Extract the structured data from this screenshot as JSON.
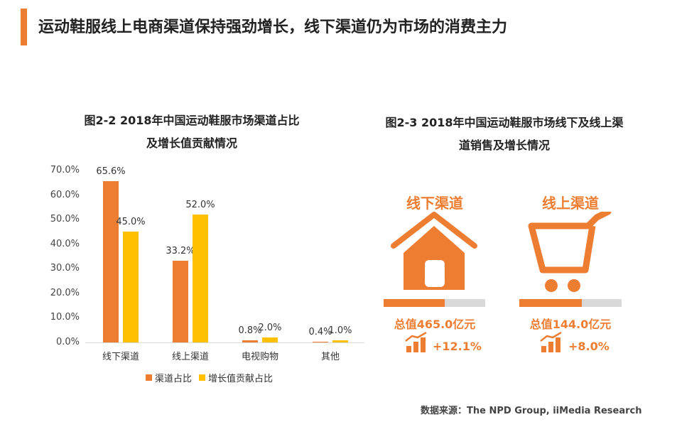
{
  "headline": "运动鞋服线上电商渠道保持强劲增长，线下渠道仍为市场的消费主力",
  "colors": {
    "accent": "#ed7d31",
    "series1": "#ed7d31",
    "series2": "#ffc000",
    "track": "#d9d9d9"
  },
  "chart_data": {
    "type": "bar",
    "title_line1": "图2-2 2018年中国运动鞋服市场渠道占比",
    "title_line2": "及增长值贡献情况",
    "categories": [
      "线下渠道",
      "线上渠道",
      "电视购物",
      "其他"
    ],
    "series": [
      {
        "name": "渠道占比",
        "values": [
          65.6,
          33.2,
          0.8,
          0.4
        ],
        "labels": [
          "65.6%",
          "33.2%",
          "0.8%",
          "0.4%"
        ]
      },
      {
        "name": "增长值贡献占比",
        "values": [
          45.0,
          52.0,
          2.0,
          1.0
        ],
        "labels": [
          "45.0%",
          "52.0%",
          "2.0%",
          "1.0%"
        ]
      }
    ],
    "yticks": [
      "0.0%",
      "10.0%",
      "20.0%",
      "30.0%",
      "40.0%",
      "50.0%",
      "60.0%",
      "70.0%"
    ],
    "ylim": [
      0,
      70
    ],
    "legend": "bottom",
    "grid": false
  },
  "panel2": {
    "title_line1": "图2-3 2018年中国运动鞋服市场线下及线上渠",
    "title_line2": "道销售及增长情况",
    "channels": [
      {
        "name": "线下渠道",
        "icon": "house-icon",
        "total": "总值465.0亿元",
        "growth": "+12.1%",
        "share": 0.6
      },
      {
        "name": "线上渠道",
        "icon": "shopping-cart-icon",
        "total": "总值144.0亿元",
        "growth": "+8.0%",
        "share": 0.61
      }
    ]
  },
  "source": "数据来源：The NPD Group, iiMedia Research"
}
